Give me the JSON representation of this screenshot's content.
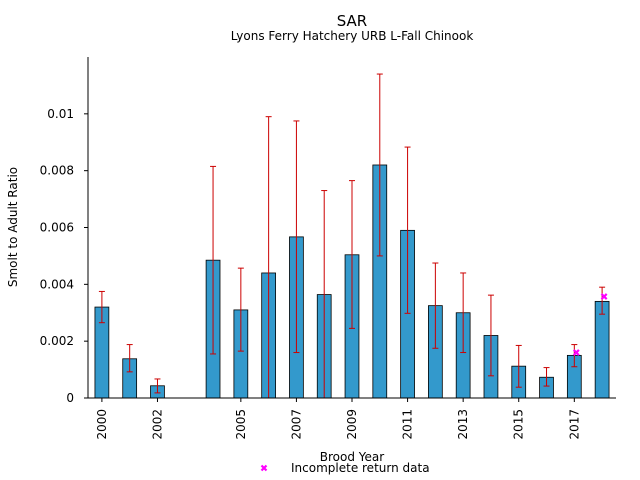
{
  "chart_data": {
    "type": "bar",
    "title": "SAR",
    "subtitle": "Lyons Ferry Hatchery URB L-Fall Chinook",
    "xlabel": "Brood Year",
    "ylabel": "Smolt to Adult Ratio",
    "ylim": [
      0,
      0.012
    ],
    "xlim": [
      1999.5,
      2018.5
    ],
    "yticks": [
      0,
      0.002,
      0.004,
      0.006,
      0.008,
      0.01
    ],
    "ytick_labels": [
      "0",
      "0.002",
      "0.004",
      "0.006",
      "0.008",
      "0.01"
    ],
    "xticks": [
      2000,
      2002,
      2005,
      2007,
      2009,
      2011,
      2013,
      2015,
      2017
    ],
    "xtick_labels": [
      "2000",
      "2002",
      "2005",
      "2007",
      "2009",
      "2011",
      "2013",
      "2015",
      "2017"
    ],
    "bar_color": "#3399cc",
    "error_color": "#cc0000",
    "marker_color": "#ff00ff",
    "bars": [
      {
        "year": 2000,
        "value": 0.0032,
        "lower": 0.00265,
        "upper": 0.00375
      },
      {
        "year": 2001,
        "value": 0.00138,
        "lower": 0.00092,
        "upper": 0.00188
      },
      {
        "year": 2002,
        "value": 0.00043,
        "lower": 0.00018,
        "upper": 0.00067
      },
      {
        "year": 2004,
        "value": 0.00485,
        "lower": 0.00155,
        "upper": 0.00815
      },
      {
        "year": 2005,
        "value": 0.0031,
        "lower": 0.00165,
        "upper": 0.00457
      },
      {
        "year": 2006,
        "value": 0.0044,
        "lower": 0.0,
        "upper": 0.0099
      },
      {
        "year": 2007,
        "value": 0.00567,
        "lower": 0.0016,
        "upper": 0.00975
      },
      {
        "year": 2008,
        "value": 0.00364,
        "lower": 0.0,
        "upper": 0.0073
      },
      {
        "year": 2009,
        "value": 0.00504,
        "lower": 0.00245,
        "upper": 0.00765
      },
      {
        "year": 2010,
        "value": 0.0082,
        "lower": 0.005,
        "upper": 0.0114
      },
      {
        "year": 2011,
        "value": 0.0059,
        "lower": 0.00298,
        "upper": 0.00883
      },
      {
        "year": 2012,
        "value": 0.00325,
        "lower": 0.00175,
        "upper": 0.00475
      },
      {
        "year": 2013,
        "value": 0.003,
        "lower": 0.0016,
        "upper": 0.0044
      },
      {
        "year": 2014,
        "value": 0.0022,
        "lower": 0.00078,
        "upper": 0.00362
      },
      {
        "year": 2015,
        "value": 0.00112,
        "lower": 0.00038,
        "upper": 0.00185
      },
      {
        "year": 2016,
        "value": 0.00073,
        "lower": 0.00042,
        "upper": 0.00107
      },
      {
        "year": 2017,
        "value": 0.0015,
        "lower": 0.0011,
        "upper": 0.00188
      },
      {
        "year": 2018,
        "value": 0.0034,
        "lower": 0.00295,
        "upper": 0.0039
      }
    ],
    "incomplete_markers": [
      {
        "year": 2017,
        "value": 0.0016
      },
      {
        "year": 2018,
        "value": 0.00357
      }
    ],
    "legend": {
      "label": "Incomplete return data",
      "placement": "bottom-center"
    }
  }
}
